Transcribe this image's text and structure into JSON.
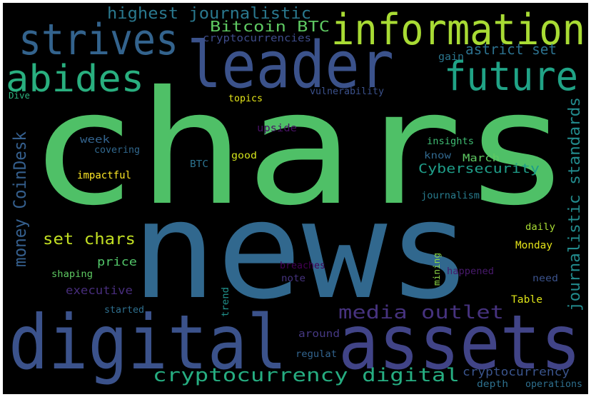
{
  "canvas": {
    "background": "#000000"
  },
  "words": [
    {
      "id": "chars",
      "text": "chars",
      "color": "#4fc067"
    },
    {
      "id": "news",
      "text": "news",
      "color": "#31688e"
    },
    {
      "id": "digital",
      "text": "digital",
      "color": "#3b528b"
    },
    {
      "id": "assets",
      "text": "assets",
      "color": "#414487"
    },
    {
      "id": "leader",
      "text": "leader",
      "color": "#3b528b"
    },
    {
      "id": "information",
      "text": "information",
      "color": "#a8db34"
    },
    {
      "id": "strives",
      "text": "strives",
      "color": "#33638d"
    },
    {
      "id": "abides",
      "text": "abides",
      "color": "#29af7f"
    },
    {
      "id": "future",
      "text": "future",
      "color": "#20a386"
    },
    {
      "id": "highest-journalistic",
      "text": "highest journalistic",
      "color": "#2a788e"
    },
    {
      "id": "bitcoin-btc",
      "text": "Bitcoin BTC",
      "color": "#5ec962"
    },
    {
      "id": "cryptocurrencies",
      "text": "cryptocurrencies",
      "color": "#3e4c8a"
    },
    {
      "id": "astrict-set",
      "text": "astrict set",
      "color": "#2c718e"
    },
    {
      "id": "gain",
      "text": "gain",
      "color": "#2a768e"
    },
    {
      "id": "vulnerability",
      "text": "vulnerability",
      "color": "#3b518b"
    },
    {
      "id": "topics",
      "text": "topics",
      "color": "#e3e418"
    },
    {
      "id": "dive",
      "text": "Dive",
      "color": "#2db27d"
    },
    {
      "id": "money-coindesk",
      "text": "money CoinDesk",
      "color": "#355f8d"
    },
    {
      "id": "journalistic-standards",
      "text": "journalistic standards",
      "color": "#228b8d"
    },
    {
      "id": "upside",
      "text": "upside",
      "color": "#471164"
    },
    {
      "id": "insights",
      "text": "insights",
      "color": "#3fbc73"
    },
    {
      "id": "week",
      "text": "week",
      "color": "#33638d"
    },
    {
      "id": "covering",
      "text": "covering",
      "color": "#31688e"
    },
    {
      "id": "good",
      "text": "good",
      "color": "#d2e21b"
    },
    {
      "id": "march",
      "text": "March",
      "color": "#5ec962"
    },
    {
      "id": "know",
      "text": "know",
      "color": "#31688e"
    },
    {
      "id": "cybersecurity",
      "text": "Cybersecurity",
      "color": "#1f9e89"
    },
    {
      "id": "impactful",
      "text": "impactful",
      "color": "#fde725"
    },
    {
      "id": "btc",
      "text": "BTC",
      "color": "#2c728e"
    },
    {
      "id": "journalism",
      "text": "journalism",
      "color": "#287c8e"
    },
    {
      "id": "set-chars",
      "text": "set chars",
      "color": "#c2df23"
    },
    {
      "id": "daily",
      "text": "daily",
      "color": "#a8db34"
    },
    {
      "id": "media-outlet",
      "text": "media outlet",
      "color": "#46327e"
    },
    {
      "id": "monday",
      "text": "Monday",
      "color": "#e5e419"
    },
    {
      "id": "price",
      "text": "price",
      "color": "#52c569"
    },
    {
      "id": "mining",
      "text": "mining",
      "color": "#8bd646"
    },
    {
      "id": "breaches",
      "text": "breaches",
      "color": "#440154"
    },
    {
      "id": "shaping",
      "text": "shaping",
      "color": "#5ec962"
    },
    {
      "id": "happened",
      "text": "happened",
      "color": "#481a6c"
    },
    {
      "id": "note",
      "text": "note",
      "color": "#46337e"
    },
    {
      "id": "need",
      "text": "need",
      "color": "#3b528b"
    },
    {
      "id": "executive",
      "text": "executive",
      "color": "#472d7b"
    },
    {
      "id": "trend",
      "text": "trend",
      "color": "#21918c"
    },
    {
      "id": "table",
      "text": "Table",
      "color": "#dde318"
    },
    {
      "id": "started",
      "text": "started",
      "color": "#2e6f8e"
    },
    {
      "id": "around",
      "text": "around",
      "color": "#453882"
    },
    {
      "id": "regulat",
      "text": "regulat",
      "color": "#32648e"
    },
    {
      "id": "cryptocurrency-digital",
      "text": "cryptocurrency digital",
      "color": "#26ad81"
    },
    {
      "id": "cryptocurrency",
      "text": "cryptocurrency",
      "color": "#3a548c"
    },
    {
      "id": "depth",
      "text": "depth",
      "color": "#2d708e"
    },
    {
      "id": "operations",
      "text": "operations",
      "color": "#2e6f8e"
    }
  ]
}
